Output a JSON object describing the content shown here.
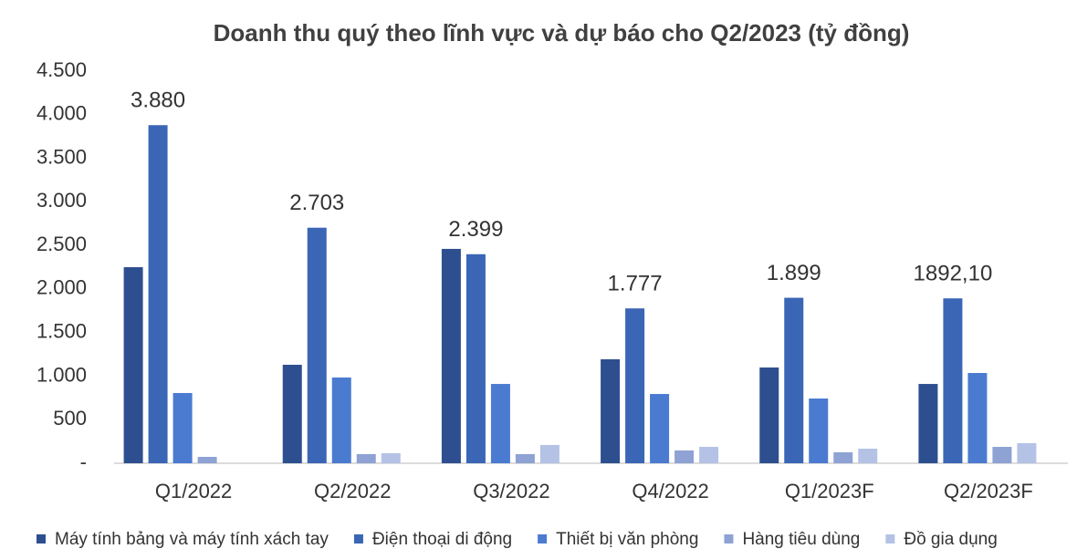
{
  "chart_data": {
    "type": "bar",
    "title": "Doanh thu quý theo lĩnh vực và dự báo cho Q2/2023 (tỷ đồng)",
    "categories": [
      "Q1/2022",
      "Q2/2022",
      "Q3/2022",
      "Q4/2022",
      "Q1/2023F",
      "Q2/2023F"
    ],
    "series": [
      {
        "name": "Máy tính bảng và máy tính xách tay",
        "color": "#2e4f8f",
        "values": [
          2250,
          1130,
          2460,
          1193,
          1099,
          910
        ]
      },
      {
        "name": "Điện thoại di động",
        "color": "#3a66b5",
        "values": [
          3880,
          2703,
          2399,
          1777,
          1899,
          1892.1
        ],
        "value_labels": [
          "3.880",
          "2.703",
          "2.399",
          "1.777",
          "1.899",
          "1892,10"
        ]
      },
      {
        "name": "Thiết bị văn phòng",
        "color": "#4a7bd0",
        "values": [
          806,
          984,
          910,
          795,
          743,
          1036
        ]
      },
      {
        "name": "Hàng tiêu dùng",
        "color": "#8ea2d4",
        "values": [
          73,
          105,
          105,
          147,
          126,
          188
        ]
      },
      {
        "name": "Đồ gia dụng",
        "color": "#b4c2e6",
        "values": [
          null,
          115,
          210,
          188,
          167,
          230
        ]
      }
    ],
    "ylim": [
      0,
      4500
    ],
    "yticks": [
      {
        "value": 0,
        "label": "-"
      },
      500,
      {
        "value": 1000,
        "label": "1.000"
      },
      {
        "value": 1500,
        "label": "1.500"
      },
      {
        "value": 2000,
        "label": "2.000"
      },
      {
        "value": 2500,
        "label": "2.500"
      },
      {
        "value": 3000,
        "label": "3.000"
      },
      {
        "value": 3500,
        "label": "3.500"
      },
      {
        "value": 4000,
        "label": "4.000"
      },
      {
        "value": 4500,
        "label": "4.500"
      }
    ],
    "legend": "bottom",
    "grid": false
  }
}
